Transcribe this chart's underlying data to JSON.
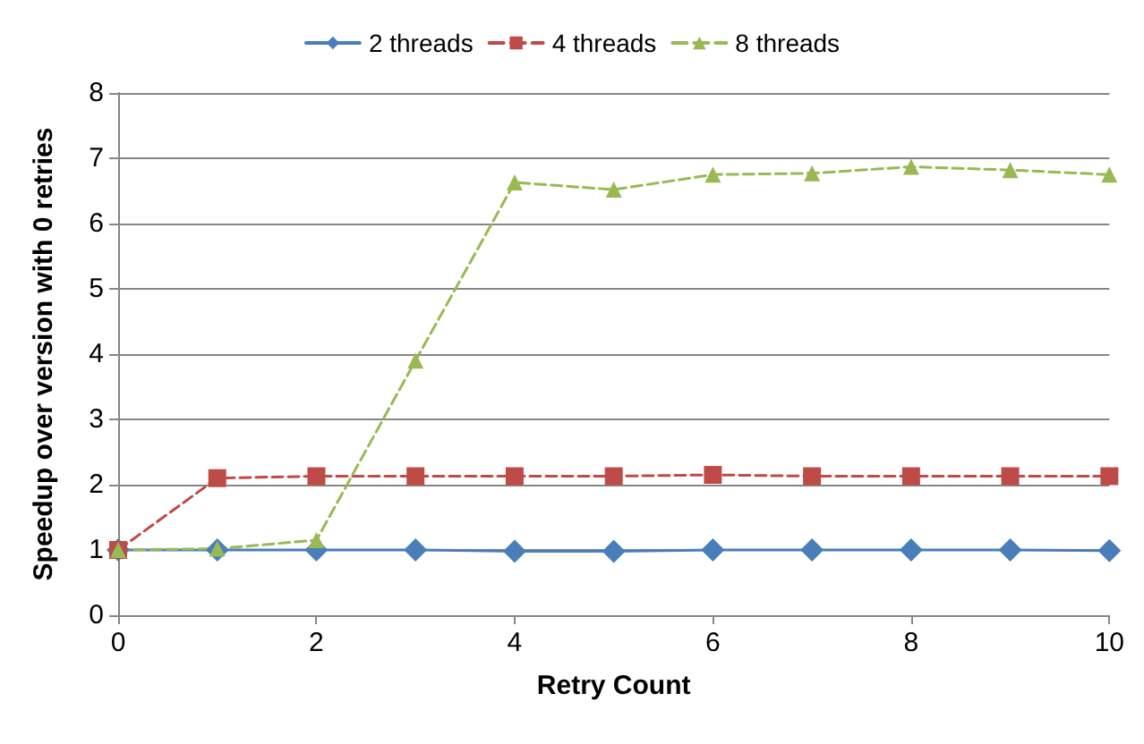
{
  "chart_data": {
    "type": "line",
    "xlabel": "Retry Count",
    "ylabel": "Speedup over version with 0 retries",
    "x": [
      0,
      1,
      2,
      3,
      4,
      5,
      6,
      7,
      8,
      9,
      10
    ],
    "series": [
      {
        "name": "2 threads",
        "color": "#4a7ebb",
        "marker": "diamond",
        "line_style": "solid",
        "values": [
          1.0,
          1.0,
          1.0,
          1.0,
          0.98,
          0.98,
          1.0,
          1.0,
          1.0,
          1.0,
          0.99
        ]
      },
      {
        "name": "4 threads",
        "color": "#be4b48",
        "marker": "square",
        "line_style": "dashed",
        "values": [
          1.0,
          2.1,
          2.13,
          2.13,
          2.13,
          2.13,
          2.15,
          2.13,
          2.13,
          2.13,
          2.13
        ]
      },
      {
        "name": "8 threads",
        "color": "#98b954",
        "marker": "triangle",
        "line_style": "dashed",
        "values": [
          1.0,
          1.02,
          1.15,
          3.9,
          6.63,
          6.52,
          6.75,
          6.77,
          6.87,
          6.82,
          6.75
        ]
      }
    ],
    "xlim": [
      0,
      10
    ],
    "xticks": [
      0,
      2,
      4,
      6,
      8,
      10
    ],
    "ylim": [
      0,
      8
    ],
    "yticks": [
      0,
      1,
      2,
      3,
      4,
      5,
      6,
      7,
      8
    ],
    "grid": "y",
    "legend": "top"
  }
}
